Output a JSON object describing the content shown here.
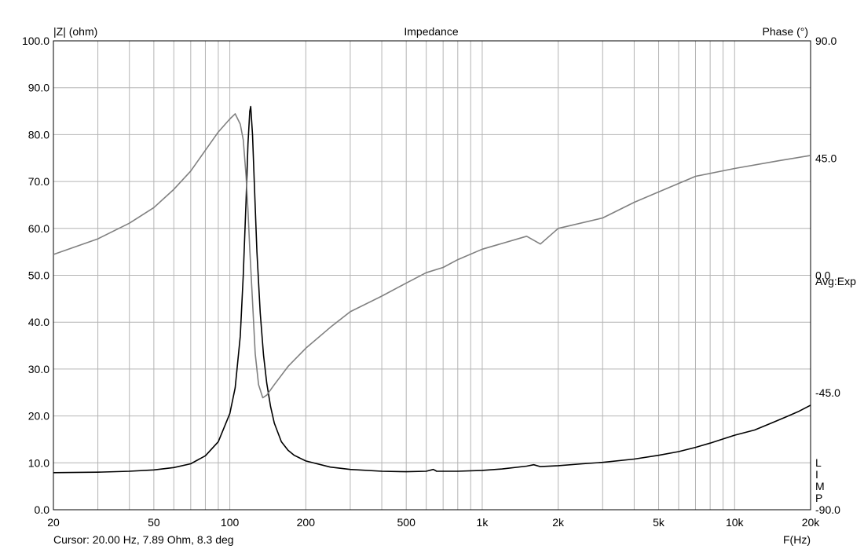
{
  "chart_data": {
    "type": "line",
    "title": "Impedance",
    "y_left_label": "|Z| (ohm)",
    "y_right_label": "Phase (°)",
    "xlabel": "F(Hz)",
    "x_scale": "log",
    "xlim": [
      20,
      20000
    ],
    "ylim_left": [
      0,
      100
    ],
    "ylim_right": [
      -90,
      90
    ],
    "grid": true,
    "x_ticks": [
      {
        "v": 20,
        "label": "20"
      },
      {
        "v": 50,
        "label": "50"
      },
      {
        "v": 100,
        "label": "100"
      },
      {
        "v": 200,
        "label": "200"
      },
      {
        "v": 500,
        "label": "500"
      },
      {
        "v": 1000,
        "label": "1k"
      },
      {
        "v": 2000,
        "label": "2k"
      },
      {
        "v": 5000,
        "label": "5k"
      },
      {
        "v": 10000,
        "label": "10k"
      },
      {
        "v": 20000,
        "label": "20k"
      }
    ],
    "y_left_ticks": [
      {
        "v": 0,
        "label": "0.0"
      },
      {
        "v": 10,
        "label": "10.0"
      },
      {
        "v": 20,
        "label": "20.0"
      },
      {
        "v": 30,
        "label": "30.0"
      },
      {
        "v": 40,
        "label": "40.0"
      },
      {
        "v": 50,
        "label": "50.0"
      },
      {
        "v": 60,
        "label": "60.0"
      },
      {
        "v": 70,
        "label": "70.0"
      },
      {
        "v": 80,
        "label": "80.0"
      },
      {
        "v": 90,
        "label": "90.0"
      },
      {
        "v": 100,
        "label": "100.0"
      }
    ],
    "y_right_ticks": [
      {
        "v": 90,
        "label": "90.0"
      },
      {
        "v": 45,
        "label": "45.0"
      },
      {
        "v": 0,
        "label": "0.0"
      },
      {
        "v": -45,
        "label": "-45.0"
      },
      {
        "v": -90,
        "label": "-90.0"
      }
    ],
    "annotation": "Avg:Exp",
    "limp_label": [
      "L",
      "I",
      "M",
      "P"
    ],
    "cursor_text": "Cursor: 20.00 Hz, 7.89 Ohm, 8.3 deg",
    "series": [
      {
        "color": "#000000",
        "axis": "left",
        "points": [
          [
            20,
            7.9
          ],
          [
            30,
            8
          ],
          [
            40,
            8.2
          ],
          [
            50,
            8.5
          ],
          [
            60,
            9
          ],
          [
            70,
            9.8
          ],
          [
            80,
            11.5
          ],
          [
            90,
            14.5
          ],
          [
            100,
            20.5
          ],
          [
            105,
            26
          ],
          [
            110,
            37
          ],
          [
            113,
            50
          ],
          [
            116,
            66
          ],
          [
            118,
            78
          ],
          [
            120,
            85
          ],
          [
            121,
            86
          ],
          [
            123,
            80
          ],
          [
            125,
            70
          ],
          [
            128,
            55
          ],
          [
            132,
            42
          ],
          [
            136,
            33
          ],
          [
            140,
            27
          ],
          [
            145,
            22
          ],
          [
            150,
            18.5
          ],
          [
            160,
            14.5
          ],
          [
            170,
            12.7
          ],
          [
            180,
            11.6
          ],
          [
            200,
            10.4
          ],
          [
            250,
            9.1
          ],
          [
            300,
            8.6
          ],
          [
            400,
            8.2
          ],
          [
            500,
            8.1
          ],
          [
            600,
            8.2
          ],
          [
            640,
            8.6
          ],
          [
            660,
            8.2
          ],
          [
            800,
            8.2
          ],
          [
            1000,
            8.4
          ],
          [
            1200,
            8.7
          ],
          [
            1500,
            9.3
          ],
          [
            1600,
            9.6
          ],
          [
            1700,
            9.2
          ],
          [
            2000,
            9.4
          ],
          [
            2500,
            9.8
          ],
          [
            3000,
            10.1
          ],
          [
            4000,
            10.8
          ],
          [
            5000,
            11.6
          ],
          [
            6000,
            12.4
          ],
          [
            7000,
            13.3
          ],
          [
            8000,
            14.2
          ],
          [
            9000,
            15.1
          ],
          [
            10000,
            15.9
          ],
          [
            12000,
            17
          ],
          [
            14000,
            18.5
          ],
          [
            16000,
            19.8
          ],
          [
            18000,
            21
          ],
          [
            20000,
            22.3
          ]
        ]
      },
      {
        "color": "#808080",
        "axis": "right",
        "points": [
          [
            20,
            8
          ],
          [
            30,
            14
          ],
          [
            40,
            20
          ],
          [
            50,
            26
          ],
          [
            60,
            33
          ],
          [
            70,
            40
          ],
          [
            80,
            48
          ],
          [
            90,
            55
          ],
          [
            100,
            60
          ],
          [
            105,
            62
          ],
          [
            110,
            58
          ],
          [
            113,
            52
          ],
          [
            116,
            38
          ],
          [
            118,
            25
          ],
          [
            120,
            10
          ],
          [
            123,
            -10
          ],
          [
            126,
            -30
          ],
          [
            130,
            -42
          ],
          [
            135,
            -47
          ],
          [
            140,
            -46
          ],
          [
            150,
            -42
          ],
          [
            170,
            -35
          ],
          [
            200,
            -28
          ],
          [
            250,
            -20
          ],
          [
            300,
            -14
          ],
          [
            400,
            -8
          ],
          [
            500,
            -3
          ],
          [
            600,
            1
          ],
          [
            700,
            3
          ],
          [
            800,
            6
          ],
          [
            1000,
            10
          ],
          [
            1500,
            15
          ],
          [
            1700,
            12
          ],
          [
            2000,
            18
          ],
          [
            3000,
            22
          ],
          [
            4000,
            28
          ],
          [
            5000,
            32
          ],
          [
            7000,
            38
          ],
          [
            10000,
            41
          ],
          [
            15000,
            44
          ],
          [
            20000,
            46
          ]
        ]
      }
    ]
  }
}
